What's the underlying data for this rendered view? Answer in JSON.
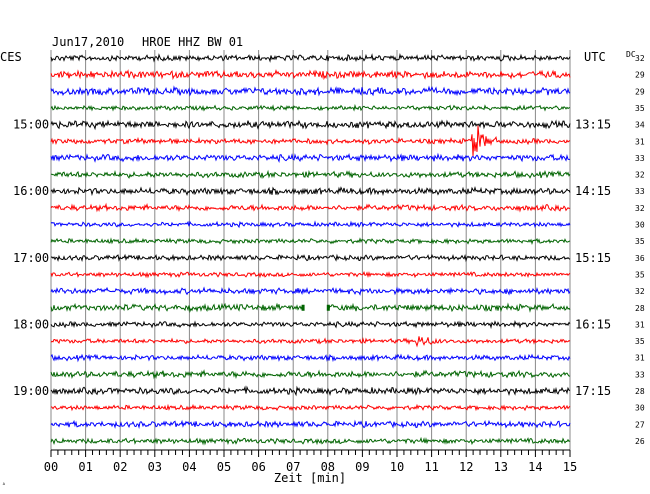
{
  "header": {
    "date": "Jun17,2010",
    "station": "HROE HHZ BW 01",
    "left_tz": "CES",
    "right_tz": "UTC",
    "dc_label": "DC"
  },
  "chart_data": {
    "type": "line",
    "title": "Jun17,2010    HROE HHZ BW 01",
    "xlabel": "Zeit [min]",
    "xlim": [
      0,
      15
    ],
    "x_ticks": [
      "00",
      "01",
      "02",
      "03",
      "04",
      "05",
      "06",
      "07",
      "08",
      "09",
      "10",
      "11",
      "12",
      "13",
      "14",
      "15"
    ],
    "grid": true,
    "trace_colors": [
      "#000000",
      "#ff0000",
      "#0000ff",
      "#006400"
    ],
    "left_time_labels": [
      {
        "row": 4,
        "label": "15:00"
      },
      {
        "row": 8,
        "label": "16:00"
      },
      {
        "row": 12,
        "label": "17:00"
      },
      {
        "row": 16,
        "label": "18:00"
      },
      {
        "row": 20,
        "label": "19:00"
      }
    ],
    "right_time_labels": [
      {
        "row": 4,
        "label": "13:15"
      },
      {
        "row": 8,
        "label": "14:15"
      },
      {
        "row": 12,
        "label": "15:15"
      },
      {
        "row": 16,
        "label": "16:15"
      },
      {
        "row": 20,
        "label": "17:15"
      }
    ],
    "dc_values": [
      32,
      29,
      29,
      35,
      34,
      31,
      33,
      32,
      33,
      32,
      30,
      35,
      36,
      35,
      32,
      28,
      31,
      35,
      31,
      33,
      28,
      30,
      27,
      26
    ],
    "events": [
      {
        "row": 5,
        "minute": 12.2,
        "description": "large spike"
      },
      {
        "row": 17,
        "minute": 10.6,
        "description": "burst"
      }
    ],
    "gaps": [
      {
        "row": 15,
        "start_minute": 7.3,
        "end_minute": 8.0
      }
    ]
  }
}
